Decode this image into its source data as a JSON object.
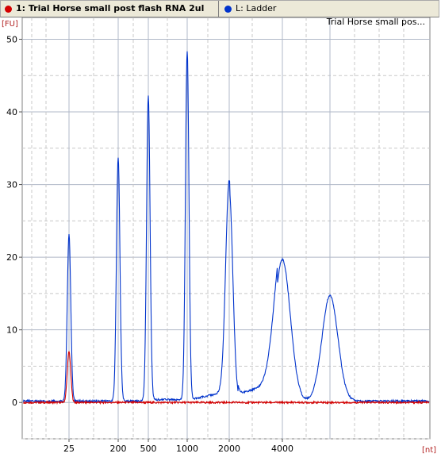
{
  "legend": {
    "sample_label": "1: Trial Horse small  post flash RNA 2ul",
    "sample_color": "#d40000",
    "ladder_label": "L: Ladder",
    "ladder_color": "#0033cc"
  },
  "chart_data": {
    "type": "line",
    "title": "Trial Horse small  pos...",
    "ylabel": "[FU]",
    "xlabel": "[nt]",
    "ylim": [
      -5,
      53
    ],
    "yticks": [
      0,
      10,
      20,
      30,
      40,
      50
    ],
    "x_marker_labels": [
      "25",
      "200",
      "500",
      "1000",
      "2000",
      "4000"
    ],
    "x_marker_sizes_nt": [
      25,
      200,
      500,
      1000,
      2000,
      4000
    ],
    "grid": true,
    "series": [
      {
        "name": "L: Ladder",
        "color": "#0033cc",
        "baseline": 0.2,
        "peaks": [
          {
            "marker": "25",
            "height": 23,
            "width": "narrow"
          },
          {
            "marker": "200",
            "height": 33.5,
            "width": "narrow"
          },
          {
            "marker": "500",
            "height": 42,
            "width": "narrow"
          },
          {
            "marker": "1000",
            "height": 48,
            "width": "narrow"
          },
          {
            "marker": "2000",
            "height": 29,
            "width": "medium"
          },
          {
            "marker": "4000",
            "height": 19.5,
            "width": "wide"
          },
          {
            "marker": "",
            "height": 14.5,
            "width": "wide"
          }
        ]
      },
      {
        "name": "1: Trial Horse small  post flash RNA 2ul",
        "color": "#d40000",
        "baseline": 0,
        "peaks": [
          {
            "marker": "25",
            "height": 7,
            "width": "narrow"
          }
        ]
      }
    ]
  }
}
